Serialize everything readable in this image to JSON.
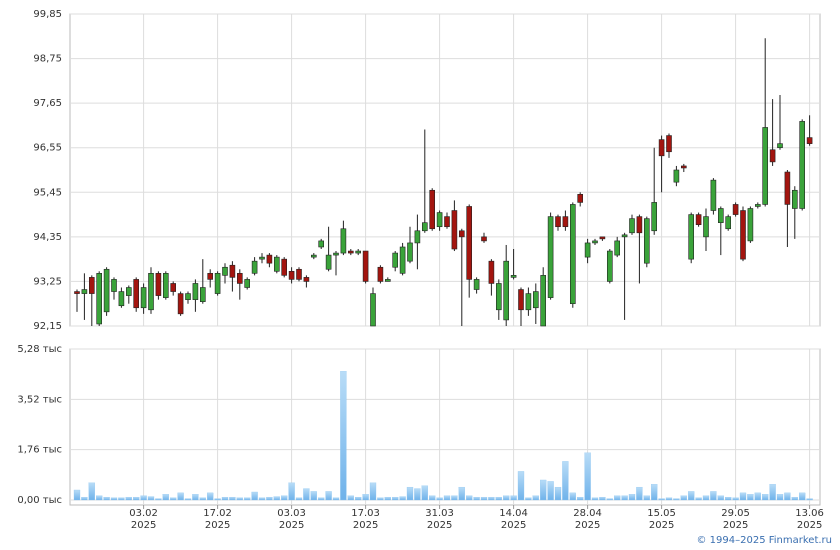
{
  "chart_data": {
    "type": "candlestick",
    "categories": [
      null,
      null,
      null,
      null,
      null,
      null,
      null,
      null,
      null,
      "03.02\n2025",
      null,
      null,
      null,
      null,
      null,
      null,
      null,
      null,
      null,
      "17.02\n2025",
      null,
      null,
      null,
      null,
      null,
      null,
      null,
      null,
      null,
      "03.03\n2025",
      null,
      null,
      null,
      null,
      null,
      null,
      null,
      null,
      null,
      "17.03\n2025",
      null,
      null,
      null,
      null,
      null,
      null,
      null,
      null,
      null,
      "31.03\n2025",
      null,
      null,
      null,
      null,
      null,
      null,
      null,
      null,
      null,
      "14.04\n2025",
      null,
      null,
      null,
      null,
      null,
      null,
      null,
      null,
      null,
      "28.04\n2025",
      null,
      null,
      null,
      null,
      null,
      null,
      null,
      null,
      null,
      "15.05\n2025",
      null,
      null,
      null,
      null,
      null,
      null,
      null,
      null,
      null,
      "29.05\n2025",
      null,
      null,
      null,
      null,
      null,
      null,
      null,
      null,
      null,
      "13.06\n2025"
    ],
    "open": [
      93.0,
      92.95,
      93.35,
      92.2,
      92.5,
      93.0,
      92.65,
      92.9,
      93.3,
      92.6,
      92.55,
      93.45,
      92.85,
      93.2,
      92.95,
      92.8,
      92.8,
      92.75,
      93.45,
      92.95,
      93.4,
      93.65,
      93.45,
      93.1,
      93.45,
      93.8,
      93.9,
      93.5,
      93.8,
      93.5,
      93.55,
      93.35,
      93.85,
      94.1,
      93.55,
      93.9,
      93.95,
      94.0,
      93.95,
      94.0,
      92.15,
      93.6,
      93.25,
      93.6,
      93.45,
      93.75,
      94.2,
      94.5,
      95.5,
      94.6,
      94.85,
      95.0,
      94.5,
      95.1,
      93.05,
      94.35,
      93.75,
      92.55,
      92.3,
      93.35,
      93.05,
      92.55,
      92.6,
      92.15,
      92.85,
      94.85,
      94.85,
      92.7,
      95.4,
      93.85,
      94.2,
      94.35,
      93.25,
      93.9,
      94.35,
      94.45,
      94.85,
      93.7,
      94.5,
      96.75,
      96.85,
      95.7,
      96.1,
      93.8,
      94.9,
      94.35,
      95.0,
      94.7,
      94.55,
      95.15,
      95.0,
      94.25,
      95.1,
      95.15,
      96.5,
      96.55,
      95.95,
      95.05,
      95.05,
      96.8
    ],
    "high": [
      93.05,
      93.45,
      93.4,
      93.5,
      93.6,
      93.35,
      93.1,
      93.15,
      93.35,
      93.2,
      93.6,
      93.5,
      93.5,
      93.25,
      93.0,
      93.0,
      93.3,
      93.8,
      93.55,
      93.5,
      93.7,
      93.75,
      93.55,
      93.35,
      93.85,
      93.95,
      93.95,
      93.9,
      93.85,
      93.6,
      93.6,
      93.4,
      93.95,
      94.3,
      94.6,
      94.0,
      94.75,
      94.05,
      94.05,
      94.0,
      93.1,
      93.65,
      93.35,
      94.0,
      94.2,
      94.6,
      94.9,
      97.0,
      95.55,
      95.0,
      94.95,
      95.25,
      94.55,
      95.15,
      93.35,
      94.45,
      93.8,
      93.3,
      94.15,
      94.05,
      93.1,
      93.1,
      93.2,
      93.6,
      94.95,
      94.9,
      95.0,
      95.2,
      95.45,
      94.3,
      94.3,
      94.35,
      94.05,
      94.35,
      94.45,
      94.9,
      94.9,
      94.85,
      96.55,
      96.85,
      96.9,
      96.1,
      96.15,
      94.95,
      94.95,
      95.05,
      95.8,
      95.1,
      94.9,
      95.2,
      95.1,
      95.1,
      95.2,
      99.25,
      97.75,
      97.85,
      96.0,
      95.6,
      97.25,
      97.35
    ],
    "low": [
      92.5,
      92.3,
      92.15,
      92.15,
      92.4,
      92.8,
      92.6,
      92.7,
      92.5,
      92.45,
      92.45,
      92.8,
      92.8,
      92.9,
      92.4,
      92.7,
      92.5,
      92.7,
      93.1,
      92.9,
      93.2,
      93.0,
      92.8,
      93.05,
      93.4,
      93.7,
      93.6,
      93.45,
      93.35,
      93.2,
      93.25,
      93.1,
      93.8,
      94.05,
      93.5,
      93.4,
      93.9,
      93.9,
      93.9,
      93.2,
      92.15,
      93.2,
      93.25,
      93.5,
      93.4,
      93.7,
      93.55,
      94.45,
      94.5,
      94.5,
      94.55,
      94.0,
      92.15,
      92.85,
      92.95,
      94.2,
      92.9,
      92.3,
      92.15,
      93.3,
      92.15,
      92.4,
      92.2,
      92.15,
      92.8,
      94.5,
      94.5,
      92.6,
      95.1,
      93.7,
      94.15,
      94.25,
      93.2,
      93.85,
      92.3,
      94.4,
      93.2,
      93.6,
      94.4,
      95.45,
      96.3,
      95.6,
      95.95,
      93.7,
      94.6,
      94.0,
      94.9,
      93.9,
      94.5,
      94.85,
      93.75,
      94.2,
      95.05,
      95.1,
      96.1,
      96.5,
      94.1,
      94.3,
      95.0,
      96.6
    ],
    "close": [
      92.95,
      93.05,
      92.95,
      93.45,
      93.55,
      93.3,
      93.0,
      93.1,
      92.6,
      93.1,
      93.45,
      92.9,
      93.45,
      93.0,
      92.45,
      92.95,
      93.2,
      93.1,
      93.3,
      93.45,
      93.6,
      93.35,
      93.2,
      93.3,
      93.75,
      93.85,
      93.7,
      93.85,
      93.4,
      93.3,
      93.3,
      93.25,
      93.9,
      94.25,
      93.9,
      93.95,
      94.55,
      93.95,
      94.0,
      93.25,
      92.95,
      93.25,
      93.3,
      93.95,
      94.1,
      94.2,
      94.5,
      94.7,
      94.55,
      94.95,
      94.6,
      94.05,
      94.35,
      93.3,
      93.3,
      94.25,
      93.2,
      93.2,
      93.75,
      93.4,
      92.55,
      92.95,
      93.0,
      93.4,
      94.85,
      94.6,
      94.6,
      95.15,
      95.2,
      94.2,
      94.25,
      94.3,
      94.0,
      94.25,
      94.4,
      94.8,
      94.45,
      94.8,
      95.2,
      96.35,
      96.45,
      96.0,
      96.05,
      94.9,
      94.65,
      94.85,
      95.75,
      95.05,
      94.85,
      94.9,
      93.8,
      95.05,
      95.15,
      97.05,
      96.2,
      96.65,
      95.15,
      95.5,
      97.2,
      96.65
    ],
    "up_color": "#3aa33a",
    "down_color": "#a3150f",
    "ylim": [
      92.15,
      99.85
    ],
    "yticks": [
      {
        "value": 92.15,
        "label": "92,15"
      },
      {
        "value": 93.25,
        "label": "93,25"
      },
      {
        "value": 94.35,
        "label": "94,35"
      },
      {
        "value": 95.45,
        "label": "95,45"
      },
      {
        "value": 96.55,
        "label": "96,55"
      },
      {
        "value": 97.65,
        "label": "97,65"
      },
      {
        "value": 98.75,
        "label": "98,75"
      },
      {
        "value": 99.85,
        "label": "99,85"
      }
    ],
    "grid": true,
    "volume": {
      "type": "bar",
      "color": "#8ec5f0",
      "values": [
        0.35,
        0.1,
        0.6,
        0.15,
        0.1,
        0.08,
        0.08,
        0.1,
        0.1,
        0.15,
        0.12,
        0.05,
        0.2,
        0.08,
        0.25,
        0.05,
        0.2,
        0.08,
        0.25,
        0.05,
        0.1,
        0.1,
        0.08,
        0.08,
        0.28,
        0.08,
        0.1,
        0.12,
        0.15,
        0.6,
        0.08,
        0.4,
        0.3,
        0.08,
        0.3,
        0.08,
        4.5,
        0.15,
        0.1,
        0.2,
        0.6,
        0.08,
        0.1,
        0.1,
        0.12,
        0.45,
        0.4,
        0.5,
        0.15,
        0.08,
        0.15,
        0.15,
        0.45,
        0.15,
        0.1,
        0.1,
        0.1,
        0.1,
        0.15,
        0.15,
        1.0,
        0.08,
        0.15,
        0.7,
        0.65,
        0.45,
        1.35,
        0.25,
        0.1,
        1.65,
        0.08,
        0.1,
        0.05,
        0.15,
        0.15,
        0.2,
        0.45,
        0.15,
        0.55,
        0.05,
        0.08,
        0.05,
        0.15,
        0.3,
        0.08,
        0.15,
        0.3,
        0.15,
        0.1,
        0.08,
        0.25,
        0.2,
        0.25,
        0.2,
        0.55,
        0.2,
        0.25,
        0.1,
        0.25,
        0.05
      ],
      "ylim": [
        0,
        5.28
      ],
      "yticks": [
        {
          "value": 0,
          "label": "0,00 тыс"
        },
        {
          "value": 1.76,
          "label": "1,76 тыс"
        },
        {
          "value": 3.52,
          "label": "3,52 тыс"
        },
        {
          "value": 5.28,
          "label": "5,28 тыс"
        }
      ]
    },
    "credit": "© 1994–2025 Finmarket.ru"
  }
}
